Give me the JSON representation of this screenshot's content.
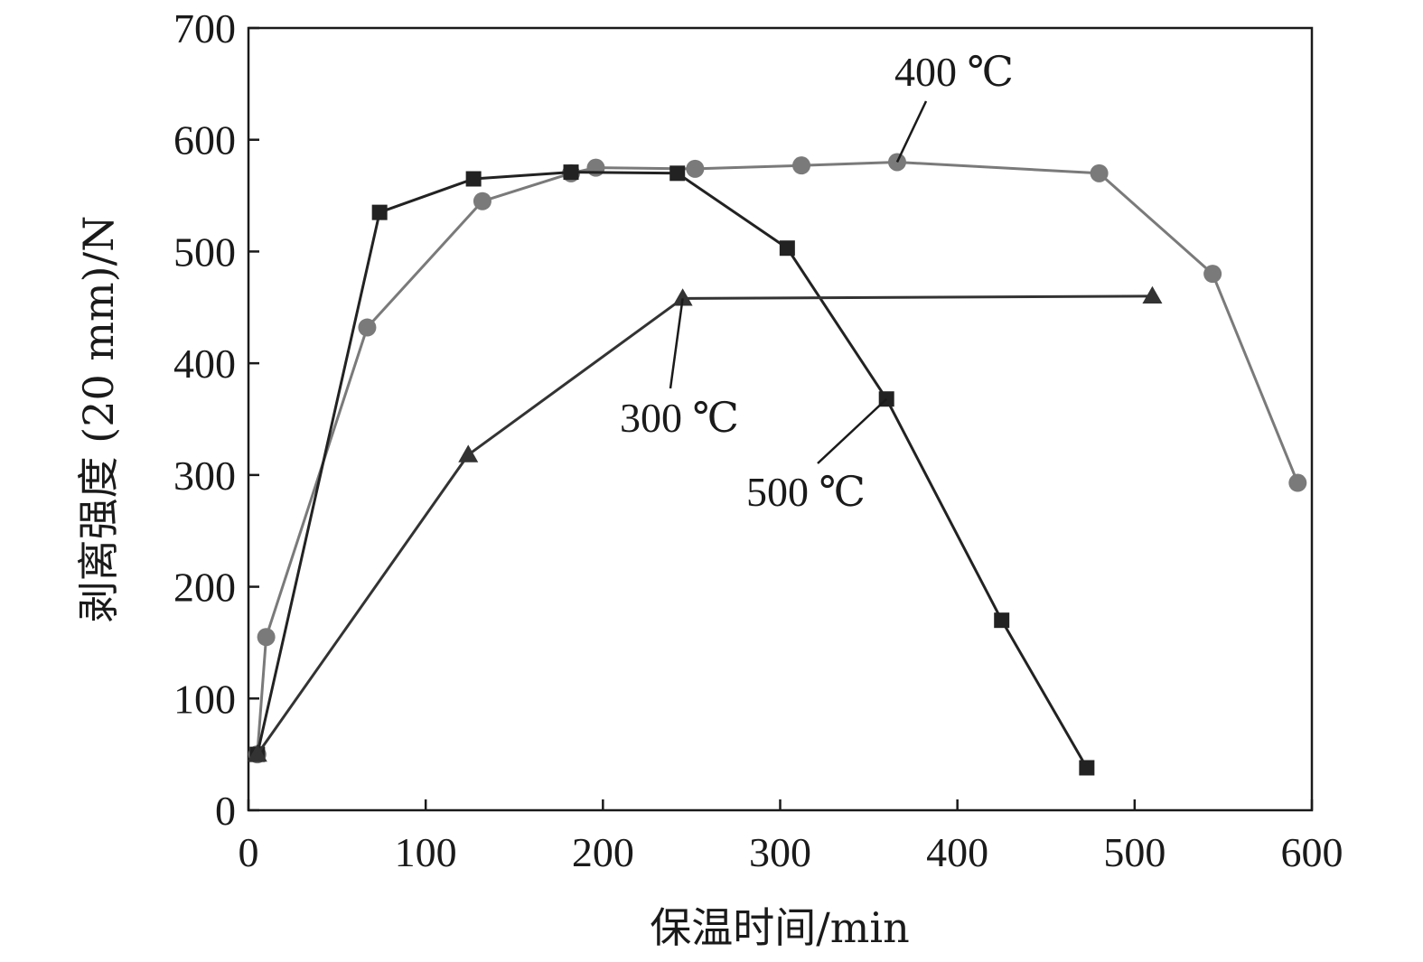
{
  "chart_data": {
    "type": "line",
    "xlabel": "保温时间/min",
    "ylabel": "剥离强度 (20 mm)/N",
    "xlim": [
      0,
      600
    ],
    "ylim": [
      0,
      700
    ],
    "xticks": [
      "0",
      "100",
      "200",
      "300",
      "400",
      "500",
      "600"
    ],
    "yticks": [
      "0",
      "100",
      "200",
      "300",
      "400",
      "500",
      "600",
      "700"
    ],
    "grid": false,
    "legend": "none",
    "series": [
      {
        "name": "400 ℃",
        "marker": "circle",
        "color": "#7a7a7a",
        "x": [
          5,
          10,
          67,
          132,
          182,
          196,
          252,
          312,
          366,
          480,
          544,
          592
        ],
        "y": [
          50,
          155,
          432,
          545,
          570,
          575,
          574,
          577,
          580,
          570,
          480,
          293
        ]
      },
      {
        "name": "500 ℃",
        "marker": "square",
        "color": "#222222",
        "x": [
          5,
          74,
          127,
          182,
          242,
          304,
          360,
          425,
          473
        ],
        "y": [
          50,
          535,
          565,
          571,
          570,
          503,
          368,
          170,
          38
        ]
      },
      {
        "name": "300 ℃",
        "marker": "triangle",
        "color": "#333333",
        "x": [
          5,
          124,
          245,
          510
        ],
        "y": [
          50,
          318,
          458,
          460
        ]
      }
    ],
    "annotations": [
      {
        "text": "400 ℃",
        "series": 0,
        "point": 8
      },
      {
        "text": "300 ℃",
        "series": 2,
        "point": 2
      },
      {
        "text": "500 ℃",
        "series": 1,
        "point": 6
      }
    ]
  }
}
